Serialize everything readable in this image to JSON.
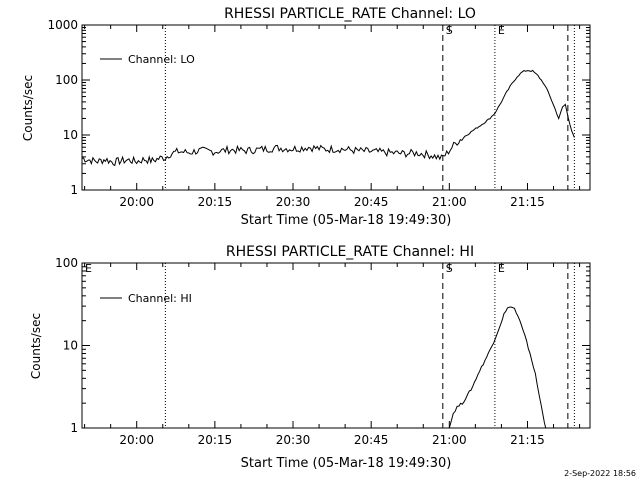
{
  "chart_data": [
    {
      "type": "line",
      "title": "RHESSI PARTICLE_RATE Channel: LO",
      "xlabel": "Start Time (05-Mar-18 19:49:30)",
      "ylabel": "Counts/sec",
      "x_unit": "time of day (HH:MM)",
      "xlim": [
        "19:49:30",
        "21:27:00"
      ],
      "ylim": [
        1,
        1000
      ],
      "y_scale": "log",
      "x_tick_labels": [
        "20:00",
        "20:15",
        "20:30",
        "20:45",
        "21:00",
        "21:15"
      ],
      "y_tick_labels": [
        "1",
        "10",
        "100",
        "1000"
      ],
      "legend": {
        "placement": "top-left",
        "entries": [
          "Channel: LO"
        ]
      },
      "grid": false,
      "markers": [
        {
          "time": "20:05:30",
          "style": "dotted",
          "label": ""
        },
        {
          "time": "20:58:45",
          "style": "dashed",
          "label": "S"
        },
        {
          "time": "21:08:45",
          "style": "dotted",
          "label": "E"
        },
        {
          "time": "21:22:45",
          "style": "dashed",
          "label": ""
        },
        {
          "time": "21:24:00",
          "style": "dotted",
          "label": ""
        }
      ],
      "series": [
        {
          "name": "Channel: LO",
          "points": [
            [
              "19:49:30",
              3.8
            ],
            [
              "19:51:00",
              3.5
            ],
            [
              "19:52:30",
              3.3
            ],
            [
              "19:54:00",
              3.6
            ],
            [
              "19:55:30",
              3.2
            ],
            [
              "19:57:00",
              3.4
            ],
            [
              "19:58:30",
              3.5
            ],
            [
              "20:00:00",
              3.3
            ],
            [
              "20:01:30",
              3.6
            ],
            [
              "20:03:00",
              3.4
            ],
            [
              "20:04:30",
              3.8
            ],
            [
              "20:05:30",
              3.9
            ],
            [
              "20:06:30",
              4.6
            ],
            [
              "20:08:00",
              5.0
            ],
            [
              "20:10:00",
              4.8
            ],
            [
              "20:12:00",
              5.2
            ],
            [
              "20:15:00",
              5.0
            ],
            [
              "20:18:00",
              5.4
            ],
            [
              "20:21:00",
              5.2
            ],
            [
              "20:24:00",
              5.5
            ],
            [
              "20:27:00",
              5.8
            ],
            [
              "20:30:00",
              5.6
            ],
            [
              "20:33:00",
              6.0
            ],
            [
              "20:36:00",
              5.5
            ],
            [
              "20:39:00",
              5.6
            ],
            [
              "20:42:00",
              5.2
            ],
            [
              "20:45:00",
              5.0
            ],
            [
              "20:48:00",
              4.8
            ],
            [
              "20:51:00",
              4.6
            ],
            [
              "20:54:00",
              4.7
            ],
            [
              "20:56:30",
              4.3
            ],
            [
              "20:58:30",
              3.8
            ],
            [
              "20:59:30",
              4.6
            ],
            [
              "21:00:30",
              6.0
            ],
            [
              "21:01:30",
              7.5
            ],
            [
              "21:03:00",
              9.5
            ],
            [
              "21:04:30",
              12.0
            ],
            [
              "21:06:00",
              15.0
            ],
            [
              "21:07:30",
              19.0
            ],
            [
              "21:08:45",
              25.0
            ],
            [
              "21:10:00",
              40.0
            ],
            [
              "21:11:00",
              60.0
            ],
            [
              "21:12:00",
              85.0
            ],
            [
              "21:13:00",
              115.0
            ],
            [
              "21:14:00",
              140.0
            ],
            [
              "21:15:00",
              150.0
            ],
            [
              "21:16:00",
              145.0
            ],
            [
              "21:17:00",
              120.0
            ],
            [
              "21:18:00",
              90.0
            ],
            [
              "21:19:00",
              60.0
            ],
            [
              "21:20:00",
              35.0
            ],
            [
              "21:21:00",
              20.0
            ],
            [
              "21:21:45",
              32.0
            ],
            [
              "21:22:15",
              36.0
            ],
            [
              "21:22:45",
              22.0
            ],
            [
              "21:23:30",
              12.0
            ],
            [
              "21:24:00",
              9.0
            ]
          ]
        }
      ]
    },
    {
      "type": "line",
      "title": "RHESSI PARTICLE_RATE Channel: HI",
      "xlabel": "Start Time (05-Mar-18 19:49:30)",
      "ylabel": "Counts/sec",
      "x_unit": "time of day (HH:MM)",
      "xlim": [
        "19:49:30",
        "21:27:00"
      ],
      "ylim": [
        1,
        100
      ],
      "y_scale": "log",
      "x_tick_labels": [
        "20:00",
        "20:15",
        "20:30",
        "20:45",
        "21:00",
        "21:15"
      ],
      "y_tick_labels": [
        "1",
        "10",
        "100"
      ],
      "legend": {
        "placement": "top-left",
        "entries": [
          "Channel: HI"
        ]
      },
      "grid": false,
      "markers": [
        {
          "time": "19:49:30",
          "style": "none",
          "label": "E"
        },
        {
          "time": "20:05:30",
          "style": "dotted",
          "label": ""
        },
        {
          "time": "20:58:45",
          "style": "dashed",
          "label": "S"
        },
        {
          "time": "21:08:45",
          "style": "dotted",
          "label": "E"
        },
        {
          "time": "21:22:45",
          "style": "dashed",
          "label": ""
        },
        {
          "time": "21:24:00",
          "style": "dotted",
          "label": ""
        }
      ],
      "series": [
        {
          "name": "Channel: HI",
          "points": [
            [
              "21:00:00",
              1.0
            ],
            [
              "21:00:45",
              1.5
            ],
            [
              "21:01:30",
              1.8
            ],
            [
              "21:02:30",
              2.0
            ],
            [
              "21:03:30",
              2.5
            ],
            [
              "21:04:30",
              3.2
            ],
            [
              "21:05:30",
              4.5
            ],
            [
              "21:06:30",
              6.0
            ],
            [
              "21:07:30",
              8.0
            ],
            [
              "21:08:30",
              11.0
            ],
            [
              "21:09:30",
              16.0
            ],
            [
              "21:10:30",
              24.0
            ],
            [
              "21:11:30",
              30.0
            ],
            [
              "21:12:30",
              28.0
            ],
            [
              "21:13:30",
              20.0
            ],
            [
              "21:14:30",
              13.0
            ],
            [
              "21:15:30",
              8.0
            ],
            [
              "21:16:30",
              4.5
            ],
            [
              "21:17:15",
              2.5
            ],
            [
              "21:18:00",
              1.4
            ],
            [
              "21:18:30",
              1.0
            ]
          ]
        }
      ]
    }
  ],
  "footer": {
    "timestamp": "2-Sep-2022 18:56"
  }
}
